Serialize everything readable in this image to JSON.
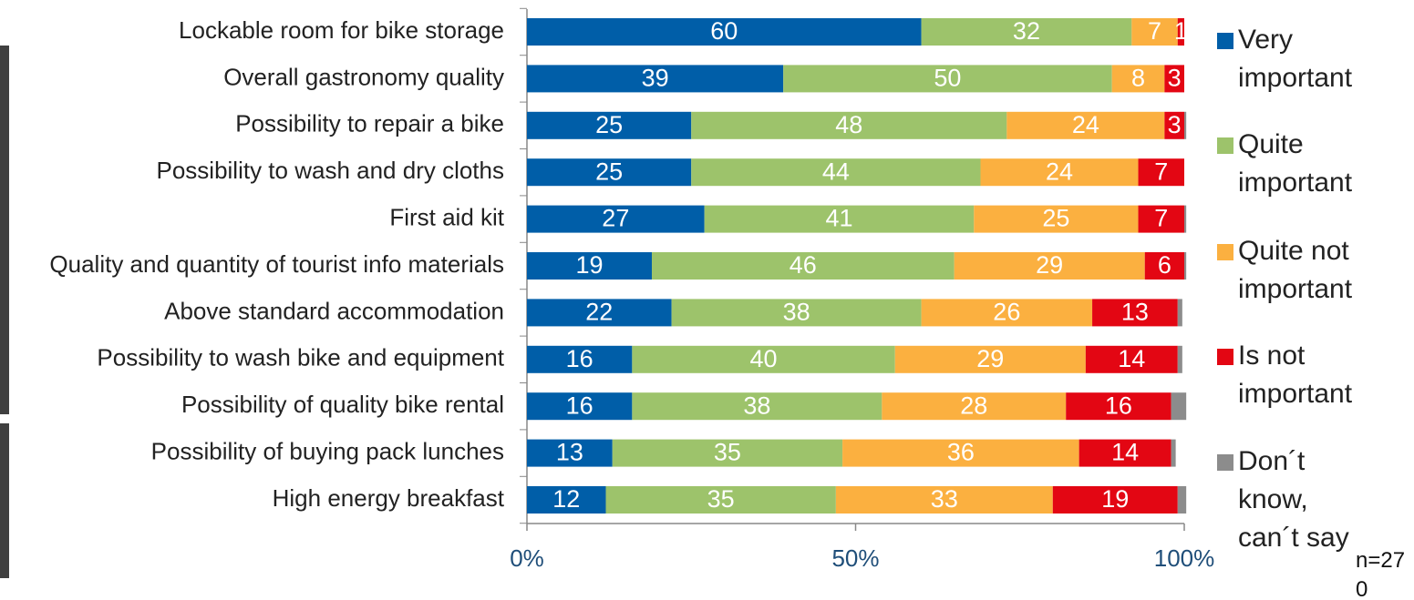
{
  "chart_data": {
    "type": "stacked-horizontal-bar",
    "categories": [
      "Lockable room for bike storage",
      "Overall gastronomy quality",
      "Possibility to repair a bike",
      "Possibility to wash and dry cloths",
      "First aid kit",
      "Quality and quantity of tourist info materials",
      "Above standard accommodation",
      "Possibility to wash bike and equipment",
      "Possibility of quality bike rental",
      "Possibility of buying pack lunches",
      "High energy breakfast"
    ],
    "series": [
      {
        "name": "Very important",
        "color": "#005ea8",
        "values": [
          60,
          39,
          25,
          25,
          27,
          19,
          22,
          16,
          16,
          13,
          12
        ],
        "value_labels": [
          "60",
          "39",
          "25",
          "25",
          "27",
          "19",
          "22",
          "16",
          "16",
          "13",
          "12"
        ]
      },
      {
        "name": "Quite important",
        "color": "#9dc36b",
        "values": [
          32,
          50,
          48,
          44,
          41,
          46,
          38,
          40,
          38,
          35,
          35
        ],
        "value_labels": [
          "32",
          "50",
          "48",
          "44",
          "41",
          "46",
          "38",
          "40",
          "38",
          "35",
          "35"
        ]
      },
      {
        "name": "Quite not important",
        "color": "#fbb040",
        "values": [
          7,
          8,
          24,
          24,
          25,
          29,
          26,
          29,
          28,
          36,
          33
        ],
        "value_labels": [
          "7",
          "8",
          "24",
          "24",
          "25",
          "29",
          "26",
          "29",
          "28",
          "36",
          "33"
        ]
      },
      {
        "name": "Is not important",
        "color": "#e30613",
        "values": [
          1,
          3,
          3,
          7,
          7,
          6,
          13,
          14,
          16,
          14,
          19
        ],
        "value_labels": [
          "1",
          "3",
          "3",
          "7",
          "7",
          "6",
          "13",
          "14",
          "16",
          "14",
          "19"
        ]
      },
      {
        "name": "Don´t know, can´t say",
        "color": "#8c8c8c",
        "values": [
          0,
          0,
          0.3,
          0,
          0.3,
          0.3,
          0.7,
          0.7,
          2.3,
          0.7,
          1.3
        ]
      }
    ],
    "xlim": [
      0,
      100
    ],
    "xticks": [
      {
        "value": 0,
        "label": "0%"
      },
      {
        "value": 50,
        "label": "50%"
      },
      {
        "value": 100,
        "label": "100%"
      }
    ],
    "legend": "right",
    "annotation": "n=270"
  }
}
